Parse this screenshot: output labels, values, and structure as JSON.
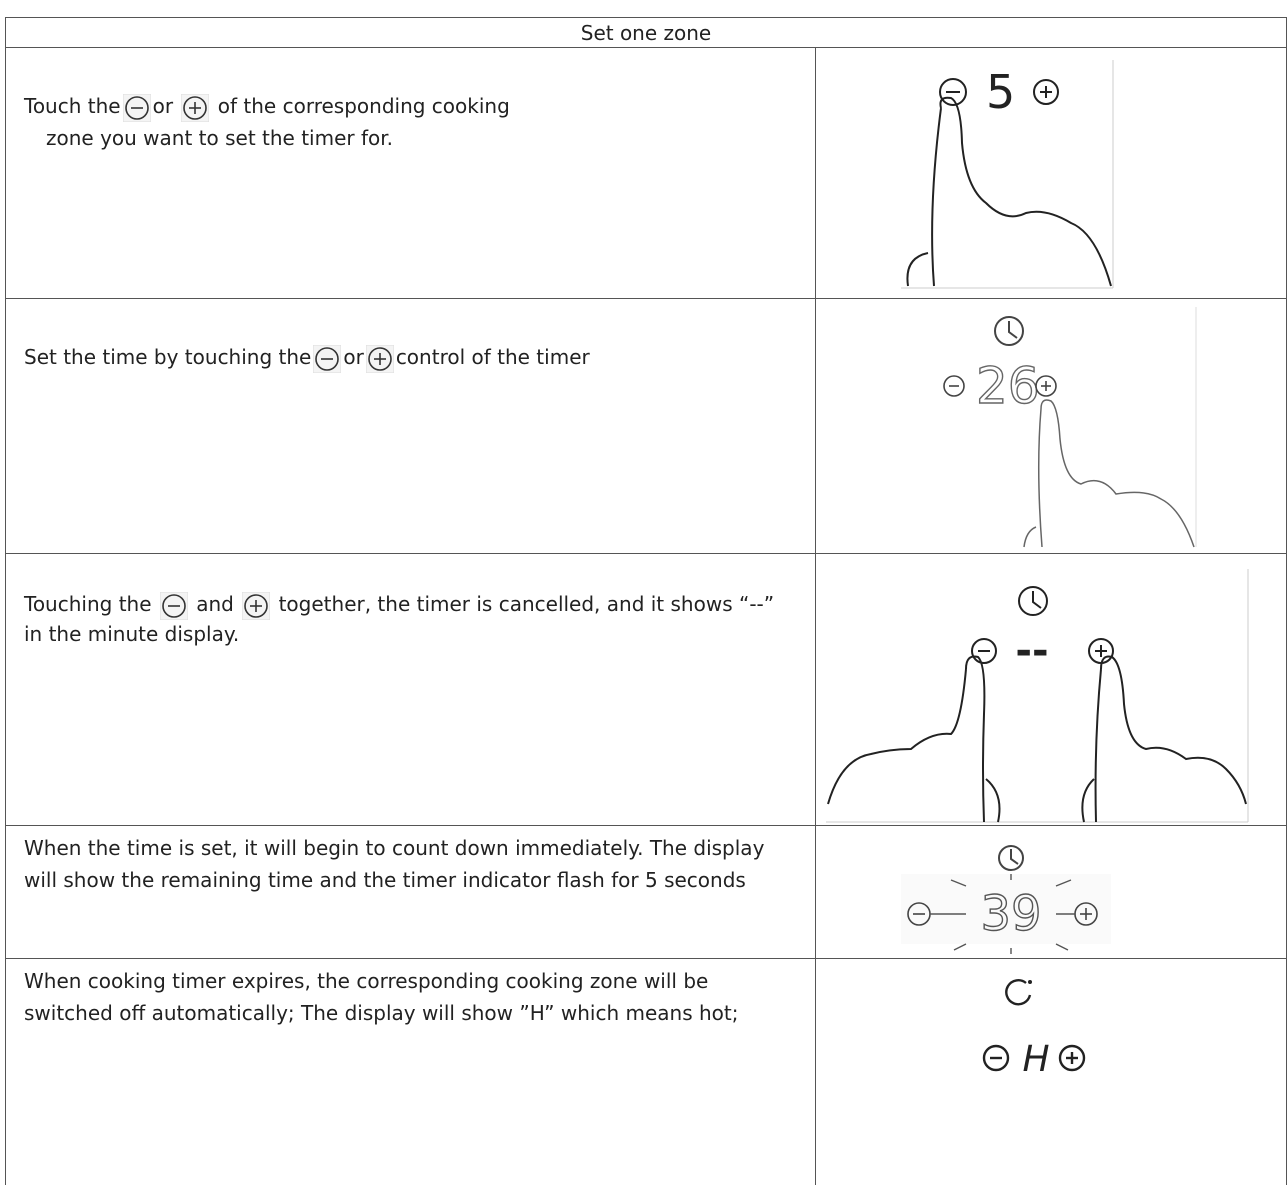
{
  "table": {
    "header": "Set one zone",
    "rows": [
      {
        "text": [
          "Touch the",
          "or",
          "of the corresponding cooking",
          "zone you want to set the timer for."
        ],
        "display": "5"
      },
      {
        "text": [
          "Set the time by touching the",
          "or",
          "control of the timer"
        ],
        "display": "26"
      },
      {
        "text": [
          "Touching the",
          "and",
          "together, the timer is cancelled, and it shows “--” in the minute display."
        ],
        "display": "--"
      },
      {
        "text": [
          "When the time is set, it will begin to count down immediately. The display will show the remaining time and the timer indicator flash for 5 seconds"
        ],
        "display": "39"
      },
      {
        "text": [
          "When cooking timer expires, the corresponding cooking zone will be switched off automatically; The display will show ”H” which means hot;"
        ],
        "display": "H"
      }
    ]
  }
}
